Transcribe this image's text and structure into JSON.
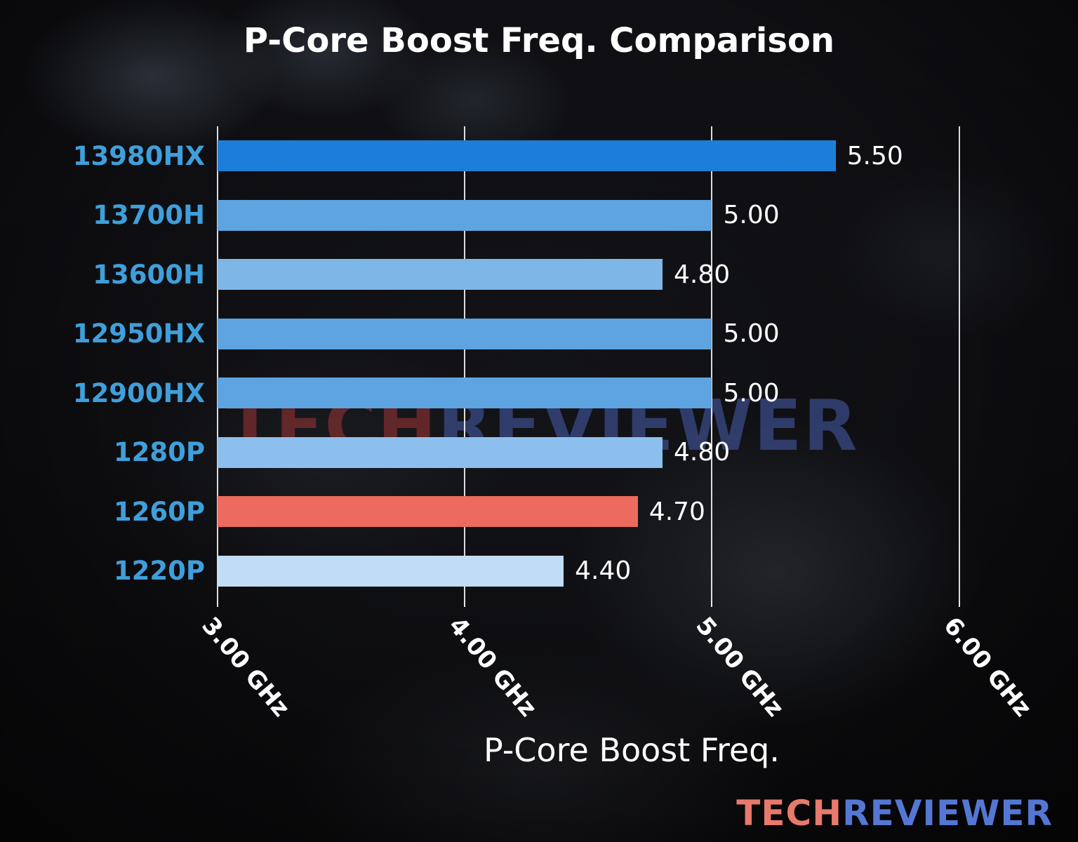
{
  "chart_data": {
    "type": "bar",
    "orientation": "horizontal",
    "title": "P-Core Boost Freq. Comparison",
    "xlabel": "P-Core Boost Freq.",
    "categories": [
      "13980HX",
      "13700H",
      "13600H",
      "12950HX",
      "12900HX",
      "1280P",
      "1260P",
      "1220P"
    ],
    "values": [
      5.5,
      5.0,
      4.8,
      5.0,
      5.0,
      4.8,
      4.7,
      4.4
    ],
    "value_labels": [
      "5.50",
      "5.00",
      "4.80",
      "5.00",
      "5.00",
      "4.80",
      "4.70",
      "4.40"
    ],
    "bar_colors": [
      "#1c7ed9",
      "#5ea4e0",
      "#7fb6e8",
      "#5ea4e0",
      "#5ea4e0",
      "#8cbfee",
      "#ed6a5e",
      "#c0ddf5"
    ],
    "x_ticks": [
      "3.00 GHz",
      "4.00 GHz",
      "5.00 GHz",
      "6.00 GHz"
    ],
    "x_tick_values": [
      3,
      4,
      5,
      6
    ],
    "xlim": [
      3,
      6.35
    ],
    "grid": true,
    "legend": "none"
  },
  "watermark": {
    "part1": "TECH",
    "part2": "REVIEWER"
  },
  "logo": {
    "part1": "TECH",
    "part2": "REVIEWER"
  },
  "colors": {
    "category_label": "#3f9fdb",
    "value_label": "#ffffff",
    "grid": "#ffffff",
    "title_text": "#ffffff",
    "watermark_tech": "rgba(160,52,52,0.55)",
    "watermark_reviewer": "rgba(78,102,190,0.50)",
    "logo_tech": "#e8796d",
    "logo_reviewer": "#5577d4"
  }
}
